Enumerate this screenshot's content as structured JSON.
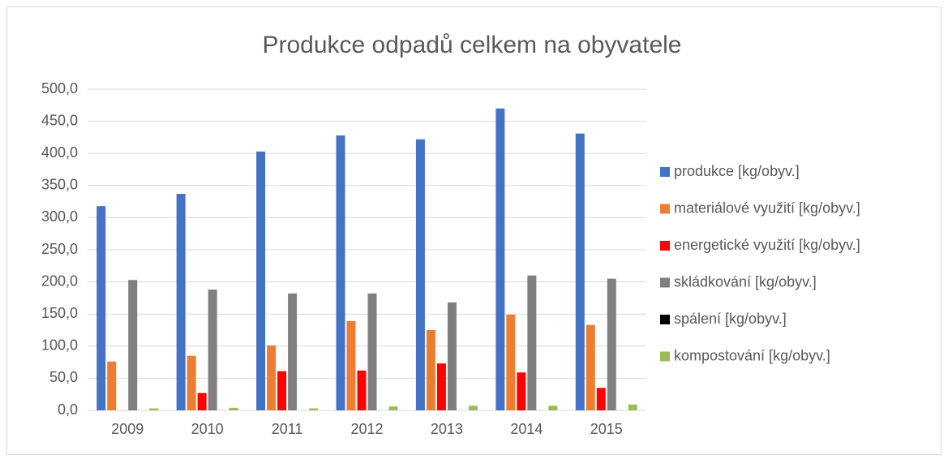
{
  "chart_data": {
    "type": "bar",
    "title": "Produkce odpadů celkem na obyvatele",
    "categories": [
      "2009",
      "2010",
      "2011",
      "2012",
      "2013",
      "2014",
      "2015"
    ],
    "series": [
      {
        "name": "produkce  [kg/obyv.]",
        "color": "#4472c4",
        "values": [
          318,
          337,
          403,
          428,
          422,
          470,
          431
        ]
      },
      {
        "name": "materiálové využití  [kg/obyv.]",
        "color": "#ed7d31",
        "values": [
          76,
          85,
          101,
          139,
          125,
          149,
          133
        ]
      },
      {
        "name": "energetické využití [kg/obyv.]",
        "color": "#ff0000",
        "values": [
          0,
          27,
          61,
          62,
          73,
          59,
          35
        ]
      },
      {
        "name": "skládkování [kg/obyv.]",
        "color": "#7f7f7f",
        "values": [
          203,
          188,
          182,
          182,
          168,
          210,
          205
        ]
      },
      {
        "name": "spálení [kg/obyv.]",
        "color": "#000000",
        "values": [
          0,
          0,
          0,
          0,
          0,
          0,
          0
        ]
      },
      {
        "name": "kompostování  [kg/obyv.]",
        "color": "#9bbb59",
        "values": [
          3,
          4,
          3,
          6,
          7,
          7,
          9
        ]
      }
    ],
    "ylim": [
      0,
      500
    ],
    "yticks": [
      {
        "value": 0,
        "label": "0,0"
      },
      {
        "value": 50,
        "label": "50,0"
      },
      {
        "value": 100,
        "label": "100,0"
      },
      {
        "value": 150,
        "label": "150,0"
      },
      {
        "value": 200,
        "label": "200,0"
      },
      {
        "value": 250,
        "label": "250,0"
      },
      {
        "value": 300,
        "label": "300,0"
      },
      {
        "value": 350,
        "label": "350,0"
      },
      {
        "value": 400,
        "label": "400,0"
      },
      {
        "value": 450,
        "label": "450,0"
      },
      {
        "value": 500,
        "label": "500,0"
      }
    ],
    "grid": true,
    "legend": "right"
  }
}
